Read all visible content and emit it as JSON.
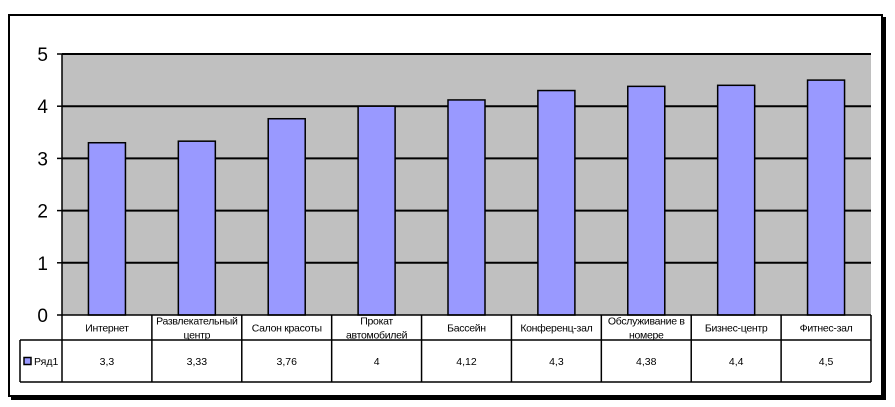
{
  "chart_data": {
    "type": "bar",
    "categories": [
      [
        "Интернет"
      ],
      [
        "Развлекательный",
        "центр"
      ],
      [
        "Салон красоты"
      ],
      [
        "Прокат",
        "автомобилей"
      ],
      [
        "Бассейн"
      ],
      [
        "Конференц-зал"
      ],
      [
        "Обслуживание в",
        "номере"
      ],
      [
        "Бизнес-центр"
      ],
      [
        "Фитнес-зал"
      ]
    ],
    "series": [
      {
        "name": "Ряд1",
        "values": [
          3.3,
          3.33,
          3.76,
          4,
          4.12,
          4.3,
          4.38,
          4.4,
          4.5
        ],
        "value_labels": [
          "3,3",
          "3,33",
          "3,76",
          "4",
          "4,12",
          "4,3",
          "4,38",
          "4,4",
          "4,5"
        ],
        "color": "#9999ff"
      }
    ],
    "ylim": [
      0,
      5
    ],
    "yticks": [
      "0",
      "1",
      "2",
      "3",
      "4",
      "5"
    ],
    "grid": true,
    "plot_background": "#c0c0c0",
    "data_table": true,
    "legend_in_table": true
  }
}
